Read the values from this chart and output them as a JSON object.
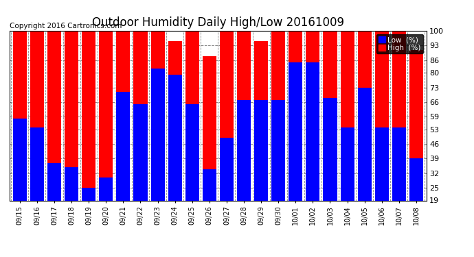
{
  "title": "Outdoor Humidity Daily High/Low 20161009",
  "copyright": "Copyright 2016 Cartronics.com",
  "dates": [
    "09/15",
    "09/16",
    "09/17",
    "09/18",
    "09/19",
    "09/20",
    "09/21",
    "09/22",
    "09/23",
    "09/24",
    "09/25",
    "09/26",
    "09/27",
    "09/28",
    "09/29",
    "09/30",
    "10/01",
    "10/02",
    "10/03",
    "10/04",
    "10/05",
    "10/06",
    "10/07",
    "10/08"
  ],
  "high": [
    100,
    100,
    100,
    100,
    100,
    100,
    100,
    100,
    100,
    95,
    100,
    88,
    100,
    100,
    95,
    100,
    100,
    100,
    100,
    100,
    100,
    100,
    100,
    91
  ],
  "low": [
    58,
    54,
    37,
    35,
    25,
    30,
    71,
    65,
    82,
    79,
    65,
    34,
    49,
    67,
    67,
    67,
    85,
    85,
    68,
    54,
    73,
    54,
    54,
    39
  ],
  "ylim_min": 19,
  "ylim_max": 100,
  "yticks": [
    19,
    25,
    32,
    39,
    46,
    53,
    59,
    66,
    73,
    80,
    86,
    93,
    100
  ],
  "high_color": "#ff0000",
  "low_color": "#0000ff",
  "bg_color": "#ffffff",
  "grid_color": "#888888",
  "title_fontsize": 12,
  "copyright_fontsize": 7.5
}
